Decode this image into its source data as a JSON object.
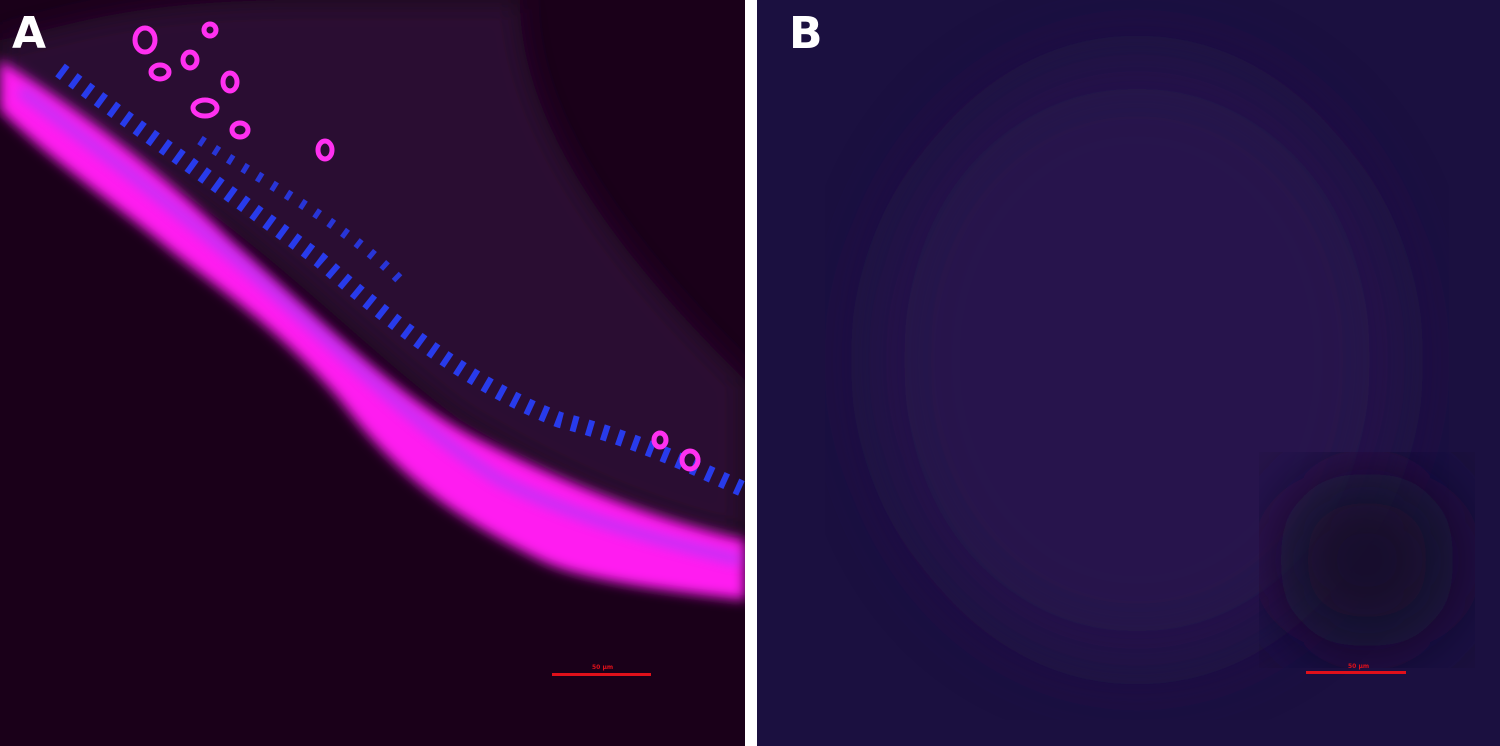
{
  "panels": [
    {
      "label": "A",
      "scale_bar": "50 µm",
      "colors": {
        "background": "#1a0019",
        "epithelium": "#ff20f0",
        "nuclei": "#2040ff"
      }
    },
    {
      "label": "B",
      "scale_bar": "50 µm",
      "colors": {
        "background": "#1b1040",
        "signal": "#5a1a70"
      }
    }
  ]
}
